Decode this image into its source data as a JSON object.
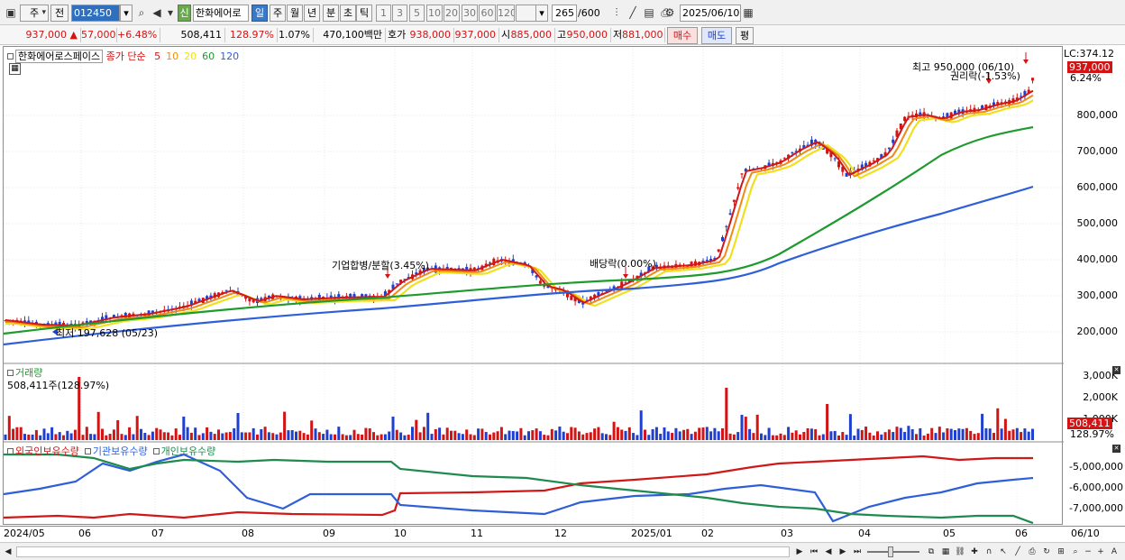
{
  "toolbar": {
    "period_label": "주",
    "prev_label": "전",
    "code_value": "012450",
    "stock_name": "한화에어로",
    "new_label": "신",
    "timeframes": [
      "일",
      "주",
      "월",
      "년",
      "분",
      "초",
      "틱"
    ],
    "selected_timeframe": "일",
    "intervals": [
      "1",
      "3",
      "5",
      "10",
      "20",
      "30",
      "60",
      "120"
    ],
    "count_value": "265",
    "count_total": "/600",
    "date_value": "2025/06/10"
  },
  "quote": {
    "price": "937,000",
    "change_arrow": "▲",
    "change": "57,000",
    "change_pct": "+6.48%",
    "volume": "508,411",
    "volume_ratio": "128.97%",
    "turnover": "1.07%",
    "amount": "470,100백만",
    "ask_label": "호가",
    "ask": "938,000",
    "bid": "937,000",
    "open_label": "시",
    "open": "885,000",
    "high_label": "고",
    "high": "950,000",
    "low_label": "저",
    "low": "881,000",
    "buy_label": "매수",
    "sell_label": "매도",
    "eval_label": "평"
  },
  "price_panel": {
    "title": "한화에어로스페이스",
    "legend_prefix": "종가 단순",
    "ma": [
      {
        "label": "5",
        "color": "#d01818"
      },
      {
        "label": "10",
        "color": "#f08a14"
      },
      {
        "label": "20",
        "color": "#f0e020"
      },
      {
        "label": "60",
        "color": "#1e9a2e"
      },
      {
        "label": "120",
        "color": "#2e5fd8"
      }
    ],
    "lc_label": "LC:374.12",
    "current_tag": "937,000",
    "current_pct": "6.24%",
    "y_ticks": [
      "800,000",
      "700,000",
      "600,000",
      "500,000",
      "400,000",
      "300,000",
      "200,000"
    ],
    "annotations": {
      "high": "최고 950,000 (06/10)",
      "low": "최저 197,628 (05/23)",
      "merger": "기업합병/분할(3.45%)",
      "dividend": "배당락(0.00%)",
      "rights": "권리락(-1.53%)"
    }
  },
  "volume_panel": {
    "title": "거래량",
    "info": "508,411주(128.97%)",
    "y_ticks": [
      "3,000K",
      "2,000K",
      "1,000K"
    ],
    "current_tag": "508,411",
    "current_pct": "128.97%"
  },
  "holding_panel": {
    "legend": [
      {
        "label": "외국인보유수량",
        "color": "#d01818"
      },
      {
        "label": "기관보유수량",
        "color": "#2e5fd8"
      },
      {
        "label": "개인보유수량",
        "color": "#1e8a4e"
      }
    ],
    "y_ticks": [
      "-5,000,000",
      "-6,000,000",
      "-7,000,000"
    ]
  },
  "x_axis": {
    "labels": [
      "2024/05",
      "06",
      "07",
      "08",
      "09",
      "10",
      "11",
      "12",
      "2025/01",
      "02",
      "03",
      "04",
      "05",
      "06"
    ],
    "right_label": "06/10"
  },
  "colors": {
    "up": "#d21414",
    "down": "#1f3fd0",
    "ma5": "#d01818",
    "ma10": "#f08a14",
    "ma20": "#f0e020",
    "ma60": "#1e9a2e",
    "ma120": "#2e5fd8"
  }
}
